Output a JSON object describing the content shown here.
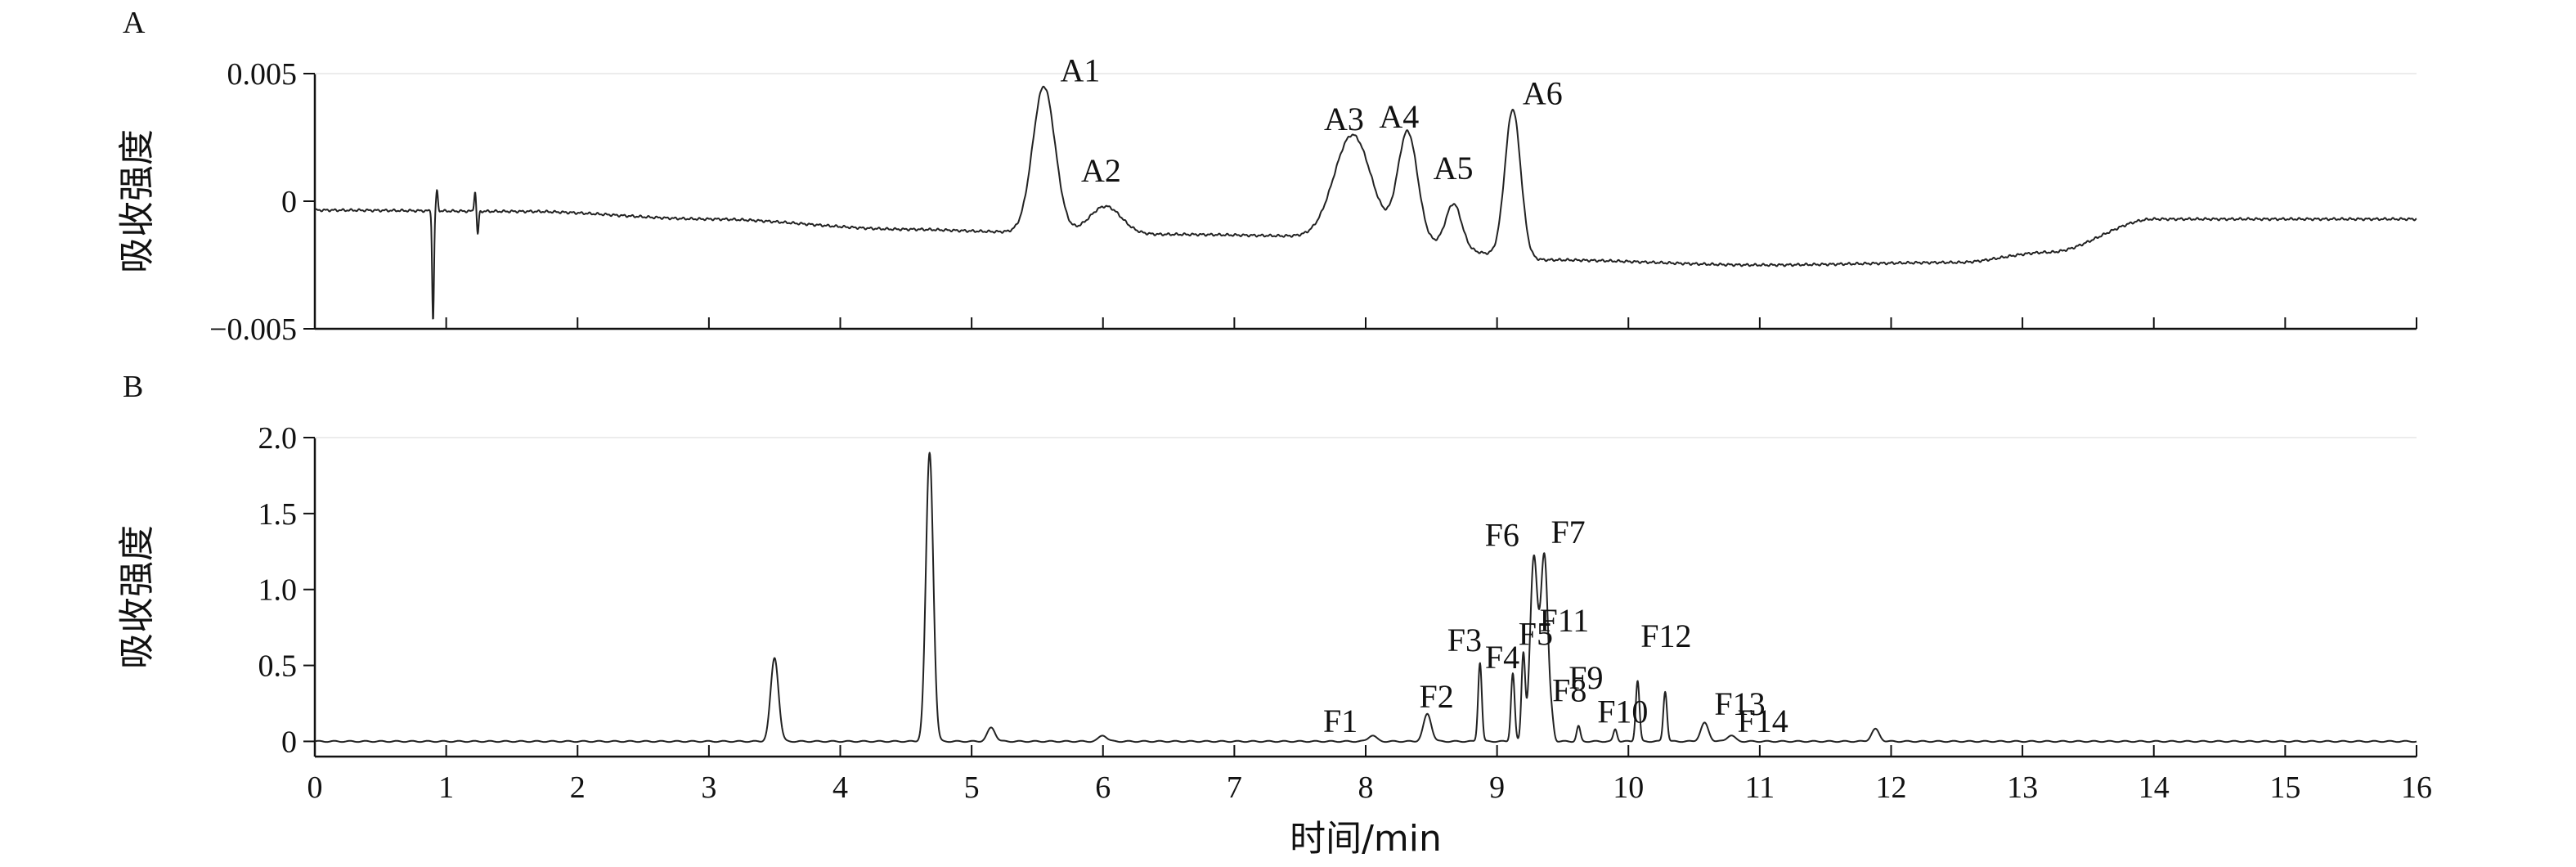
{
  "chart_data": [
    {
      "panel": "A",
      "type": "line",
      "ylabel": "吸收强度",
      "xlabel": "",
      "xlim": [
        0,
        16
      ],
      "ylim": [
        -0.005,
        0.005
      ],
      "yticks": [
        0.005,
        0,
        -0.005
      ],
      "ytick_labels": [
        "0.005",
        "0",
        "−0.005"
      ],
      "baseline": [
        [
          0,
          -0.00035
        ],
        [
          1.6,
          -0.0004
        ],
        [
          3,
          -0.0007
        ],
        [
          4.5,
          -0.0011
        ],
        [
          5.3,
          -0.0012
        ],
        [
          6.5,
          -0.0013
        ],
        [
          8,
          -0.0014
        ],
        [
          9.4,
          -0.0023
        ],
        [
          11,
          -0.0025
        ],
        [
          12.5,
          -0.0024
        ],
        [
          13.2,
          -0.002
        ],
        [
          14,
          -0.0007
        ],
        [
          16,
          -0.0007
        ]
      ],
      "peaks": [
        {
          "label": "A1",
          "t": 5.55,
          "height": 0.0045
        },
        {
          "label": "A2",
          "t": 6.02,
          "height": -0.0002
        },
        {
          "label": "A3",
          "t": 7.9,
          "height": 0.0026
        },
        {
          "label": "A4",
          "t": 8.32,
          "height": 0.0027
        },
        {
          "label": "A5",
          "t": 8.67,
          "height": -0.0001
        },
        {
          "label": "A6",
          "t": 9.12,
          "height": 0.0036
        }
      ],
      "features": [
        {
          "t": 0.9,
          "height": -0.0047
        },
        {
          "t": 0.93,
          "height": 0.0004
        },
        {
          "t": 1.22,
          "height": 0.0004
        },
        {
          "t": 1.24,
          "height": -0.0013
        }
      ],
      "grid": false,
      "legend": "none"
    },
    {
      "panel": "B",
      "type": "line",
      "ylabel": "吸收强度",
      "xlabel": "时间/min",
      "xlim": [
        0,
        16
      ],
      "xticks": [
        0,
        1,
        2,
        3,
        4,
        5,
        6,
        7,
        8,
        9,
        10,
        11,
        12,
        13,
        14,
        15,
        16
      ],
      "ylim": [
        -0.1,
        2.0
      ],
      "yticks": [
        2.0,
        1.5,
        1.0,
        0.5,
        0
      ],
      "ytick_labels": [
        "2.0",
        "1.5",
        "1.0",
        "0.5",
        "0"
      ],
      "baseline_value": 0.0,
      "peaks": [
        {
          "label": "",
          "t": 3.5,
          "height": 0.55
        },
        {
          "label": "",
          "t": 4.68,
          "height": 1.9
        },
        {
          "label": "",
          "t": 5.15,
          "height": 0.09
        },
        {
          "label": "",
          "t": 6.0,
          "height": 0.04
        },
        {
          "label": "F1",
          "t": 8.05,
          "height": 0.04
        },
        {
          "label": "F2",
          "t": 8.47,
          "height": 0.18
        },
        {
          "label": "F3",
          "t": 8.87,
          "height": 0.52
        },
        {
          "label": "F4",
          "t": 9.12,
          "height": 0.45
        },
        {
          "label": "F5",
          "t": 9.2,
          "height": 0.57
        },
        {
          "label": "F6",
          "t": 9.28,
          "height": 1.2
        },
        {
          "label": "F7",
          "t": 9.36,
          "height": 1.22
        },
        {
          "label": "F8",
          "t": 9.42,
          "height": 0.08
        },
        {
          "label": "F9",
          "t": 9.62,
          "height": 0.1
        },
        {
          "label": "F10",
          "t": 9.9,
          "height": 0.08
        },
        {
          "label": "F11",
          "t": 10.07,
          "height": 0.4
        },
        {
          "label": "F12",
          "t": 10.28,
          "height": 0.33
        },
        {
          "label": "F13",
          "t": 10.58,
          "height": 0.12
        },
        {
          "label": "F14",
          "t": 10.78,
          "height": 0.04
        },
        {
          "label": "",
          "t": 11.88,
          "height": 0.08
        }
      ],
      "grid": false,
      "legend": "none"
    }
  ]
}
